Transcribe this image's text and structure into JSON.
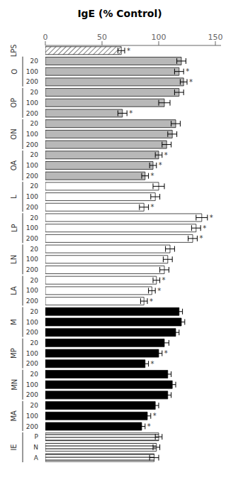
{
  "chart_data": {
    "type": "bar",
    "title": "IgE (% Control)",
    "orientation": "horizontal",
    "xlim": [
      0,
      155
    ],
    "xticks": [
      0,
      50,
      100,
      150
    ],
    "grid": false,
    "groups": [
      {
        "label": "LPS",
        "categories": [
          null
        ],
        "values": [
          67
        ],
        "errors": [
          3
        ],
        "annotations": [
          "*"
        ],
        "color": "hatch_diagonal"
      },
      {
        "label": "O",
        "categories": [
          "20",
          "100",
          "200"
        ],
        "values": [
          120,
          118,
          122
        ],
        "errors": [
          4,
          4,
          3
        ],
        "annotations": [
          null,
          "*",
          "*"
        ],
        "color": "#b8b8b8"
      },
      {
        "label": "OP",
        "categories": [
          "20",
          "100",
          "200"
        ],
        "values": [
          118,
          105,
          68
        ],
        "errors": [
          4,
          5,
          4
        ],
        "annotations": [
          null,
          null,
          "*"
        ],
        "color": "#b8b8b8"
      },
      {
        "label": "ON",
        "categories": [
          "20",
          "100",
          "200"
        ],
        "values": [
          115,
          112,
          107
        ],
        "errors": [
          4,
          4,
          4
        ],
        "annotations": [
          null,
          null,
          null
        ],
        "color": "#b8b8b8"
      },
      {
        "label": "OA",
        "categories": [
          "20",
          "100",
          "200"
        ],
        "values": [
          100,
          95,
          88
        ],
        "errors": [
          3,
          3,
          3
        ],
        "annotations": [
          "*",
          "*",
          "*"
        ],
        "color": "#b8b8b8"
      },
      {
        "label": "L",
        "categories": [
          "20",
          "100",
          "200"
        ],
        "values": [
          100,
          97,
          87
        ],
        "errors": [
          5,
          4,
          4
        ],
        "annotations": [
          null,
          null,
          "*"
        ],
        "color": "white"
      },
      {
        "label": "LP",
        "categories": [
          "20",
          "100",
          "200"
        ],
        "values": [
          138,
          133,
          130
        ],
        "errors": [
          5,
          4,
          4
        ],
        "annotations": [
          "*",
          "*",
          "*"
        ],
        "color": "white"
      },
      {
        "label": "LN",
        "categories": [
          "20",
          "100",
          "200"
        ],
        "values": [
          110,
          108,
          105
        ],
        "errors": [
          4,
          4,
          4
        ],
        "annotations": [
          null,
          null,
          null
        ],
        "color": "white"
      },
      {
        "label": "LA",
        "categories": [
          "20",
          "100",
          "200"
        ],
        "values": [
          98,
          94,
          87
        ],
        "errors": [
          3,
          3,
          3
        ],
        "annotations": [
          "*",
          "*",
          "*"
        ],
        "color": "white"
      },
      {
        "label": "M",
        "categories": [
          "20",
          "100",
          "200"
        ],
        "values": [
          118,
          120,
          115
        ],
        "errors": [
          3,
          3,
          3
        ],
        "annotations": [
          null,
          null,
          null
        ],
        "color": "black"
      },
      {
        "label": "MP",
        "categories": [
          "20",
          "100",
          "200"
        ],
        "values": [
          105,
          100,
          88
        ],
        "errors": [
          4,
          3,
          3
        ],
        "annotations": [
          null,
          "*",
          "*"
        ],
        "color": "black"
      },
      {
        "label": "MN",
        "categories": [
          "20",
          "100",
          "200"
        ],
        "values": [
          108,
          112,
          108
        ],
        "errors": [
          3,
          3,
          3
        ],
        "annotations": [
          null,
          null,
          null
        ],
        "color": "black"
      },
      {
        "label": "MA",
        "categories": [
          "20",
          "100",
          "200"
        ],
        "values": [
          97,
          90,
          85
        ],
        "errors": [
          3,
          3,
          3
        ],
        "annotations": [
          null,
          "*",
          "*"
        ],
        "color": "black"
      },
      {
        "label": "IE",
        "categories": [
          "P",
          "N",
          "A"
        ],
        "values": [
          100,
          98,
          96
        ],
        "errors": [
          3,
          3,
          4
        ],
        "annotations": [
          null,
          null,
          null
        ],
        "color": "hatch_horizontal"
      }
    ]
  }
}
